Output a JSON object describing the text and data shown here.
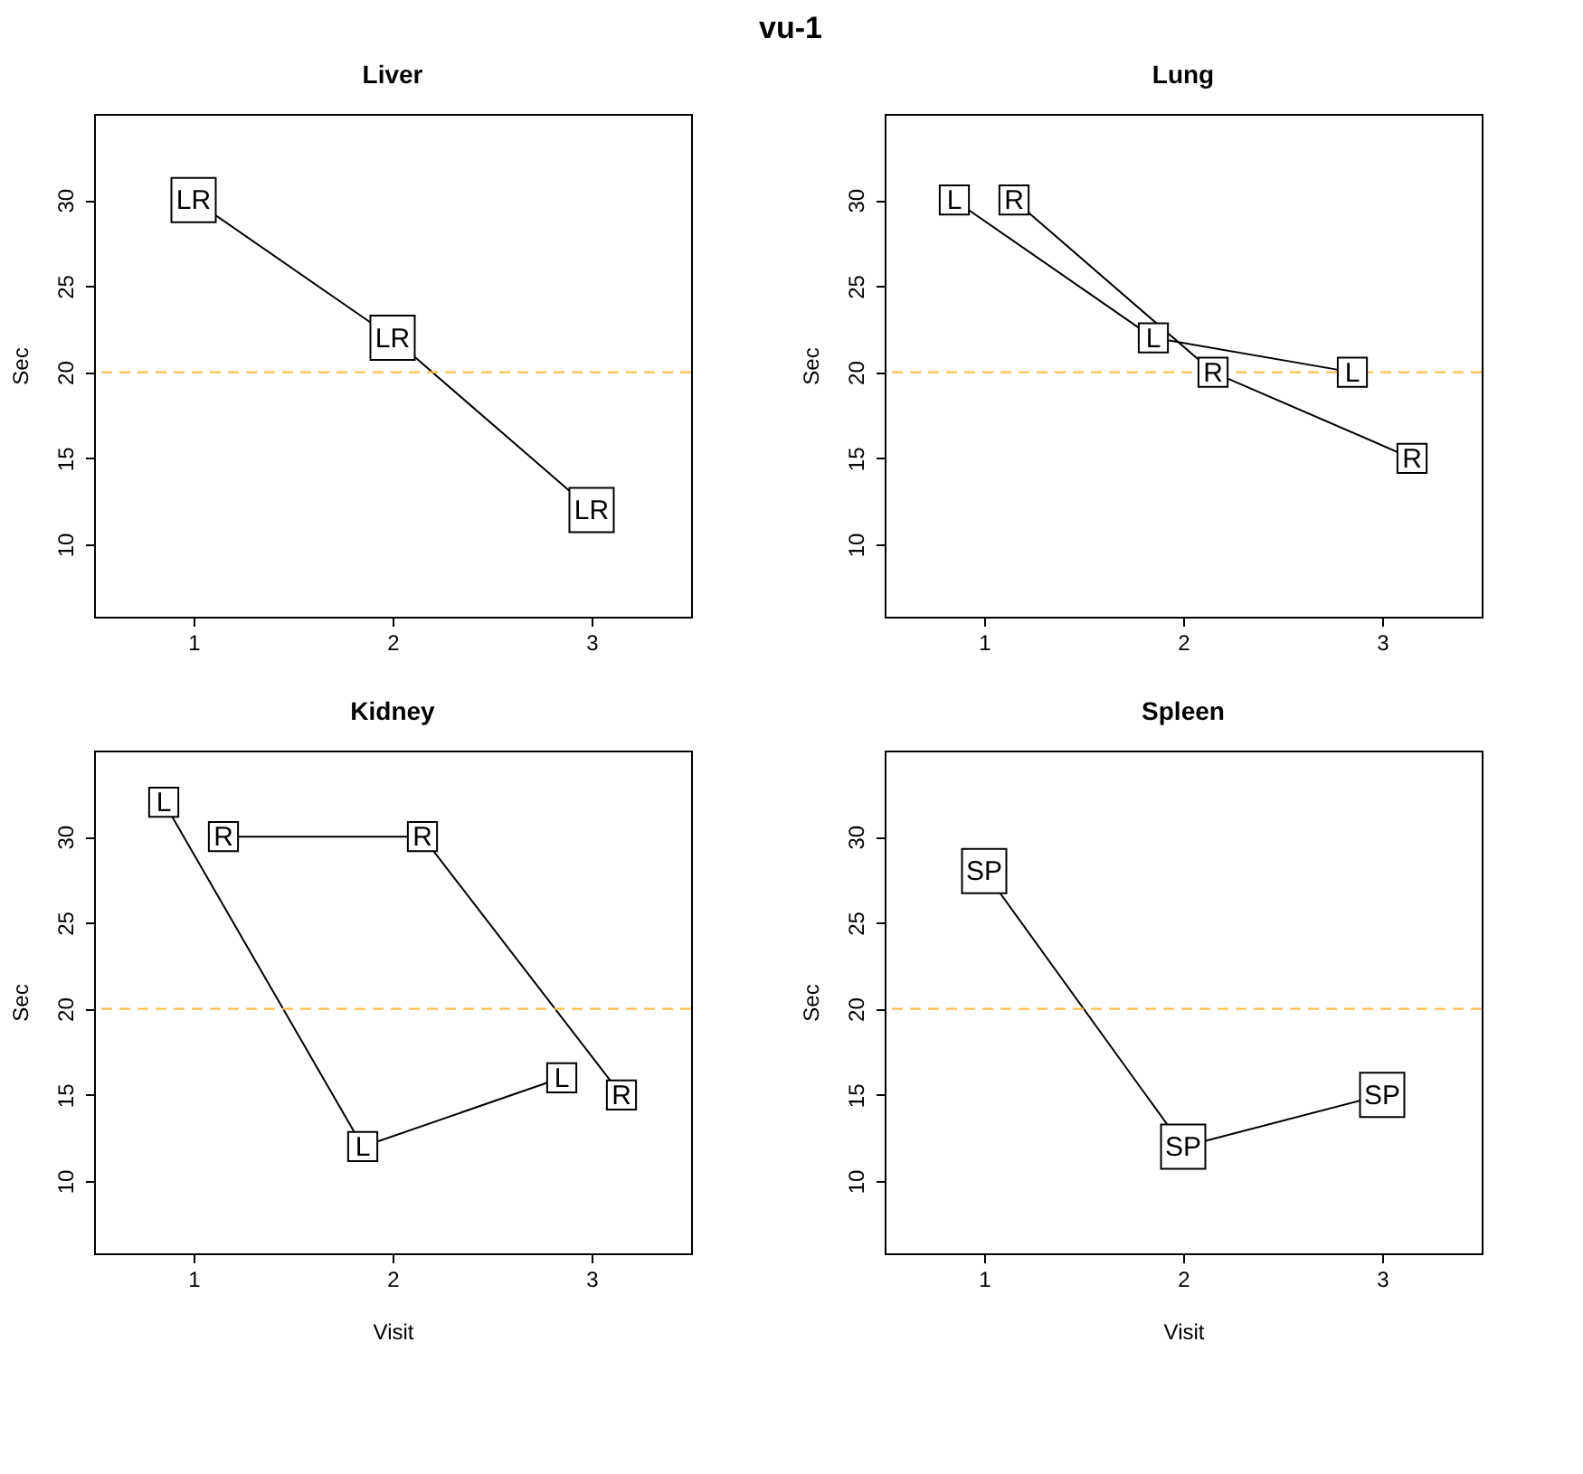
{
  "chart_data": [
    {
      "type": "other",
      "title": "vu-1"
    },
    {
      "type": "line",
      "title": "Liver",
      "ylabel": "Sec",
      "xlim": [
        0.5,
        3.5
      ],
      "xticks": [
        1,
        2,
        3
      ],
      "ylim": [
        5.8,
        35
      ],
      "yticks": [
        10,
        15,
        20,
        25,
        30
      ],
      "marker": "square",
      "line_style": "solid",
      "grid": false,
      "legend": false,
      "ref_lines": [
        {
          "axis": "y",
          "value": 20,
          "color": "#ffc04d",
          "line_style": "dashed"
        }
      ],
      "series": [
        {
          "name": "LR",
          "color": "#000000",
          "x": [
            1,
            2,
            3
          ],
          "values": [
            30,
            22,
            12
          ]
        }
      ]
    },
    {
      "type": "line",
      "title": "Lung",
      "ylabel": "Sec",
      "xlim": [
        0.5,
        3.5
      ],
      "xticks": [
        1,
        2,
        3
      ],
      "ylim": [
        5.8,
        35
      ],
      "yticks": [
        10,
        15,
        20,
        25,
        30
      ],
      "marker": "square",
      "line_style": "solid",
      "grid": false,
      "legend": false,
      "ref_lines": [
        {
          "axis": "y",
          "value": 20,
          "color": "#ffc04d",
          "line_style": "dashed"
        }
      ],
      "series": [
        {
          "name": "L",
          "color": "#000000",
          "x": [
            0.85,
            1.85,
            2.85
          ],
          "values": [
            30,
            22,
            20
          ]
        },
        {
          "name": "R",
          "color": "#000000",
          "x": [
            1.15,
            2.15,
            3.15
          ],
          "values": [
            30,
            20,
            15
          ]
        }
      ]
    },
    {
      "type": "line",
      "title": "Kidney",
      "xlabel": "Visit",
      "ylabel": "Sec",
      "xlim": [
        0.5,
        3.5
      ],
      "xticks": [
        1,
        2,
        3
      ],
      "ylim": [
        5.8,
        35
      ],
      "yticks": [
        10,
        15,
        20,
        25,
        30
      ],
      "marker": "square",
      "line_style": "solid",
      "grid": false,
      "legend": false,
      "ref_lines": [
        {
          "axis": "y",
          "value": 20,
          "color": "#ffc04d",
          "line_style": "dashed"
        }
      ],
      "series": [
        {
          "name": "L",
          "color": "#000000",
          "x": [
            0.85,
            1.85,
            2.85
          ],
          "values": [
            32,
            12,
            16
          ]
        },
        {
          "name": "R",
          "color": "#000000",
          "x": [
            1.15,
            2.15,
            3.15
          ],
          "values": [
            30,
            30,
            15
          ]
        }
      ]
    },
    {
      "type": "line",
      "title": "Spleen",
      "xlabel": "Visit",
      "ylabel": "Sec",
      "xlim": [
        0.5,
        3.5
      ],
      "xticks": [
        1,
        2,
        3
      ],
      "ylim": [
        5.8,
        35
      ],
      "yticks": [
        10,
        15,
        20,
        25,
        30
      ],
      "marker": "square",
      "line_style": "solid",
      "grid": false,
      "legend": false,
      "ref_lines": [
        {
          "axis": "y",
          "value": 20,
          "color": "#ffc04d",
          "line_style": "dashed"
        }
      ],
      "series": [
        {
          "name": "SP",
          "color": "#000000",
          "x": [
            1,
            2,
            3
          ],
          "values": [
            28,
            12,
            15
          ]
        }
      ]
    }
  ]
}
